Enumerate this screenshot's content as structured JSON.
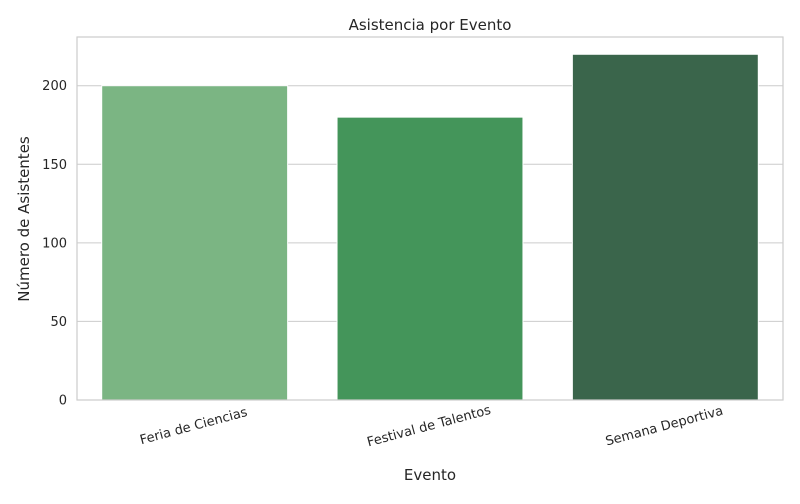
{
  "chart_data": {
    "type": "bar",
    "title": "Asistencia por Evento",
    "xlabel": "Evento",
    "ylabel": "Número de Asistentes",
    "categories": [
      "Feria de Ciencias",
      "Festival de Talentos",
      "Semana Deportiva"
    ],
    "values": [
      200,
      180,
      220
    ],
    "colors": [
      "#7bb583",
      "#44955a",
      "#3a654b"
    ],
    "ylim": [
      0,
      231
    ],
    "yticks": [
      0,
      50,
      100,
      150,
      200
    ],
    "grid": true,
    "xtick_rotation": 15
  }
}
